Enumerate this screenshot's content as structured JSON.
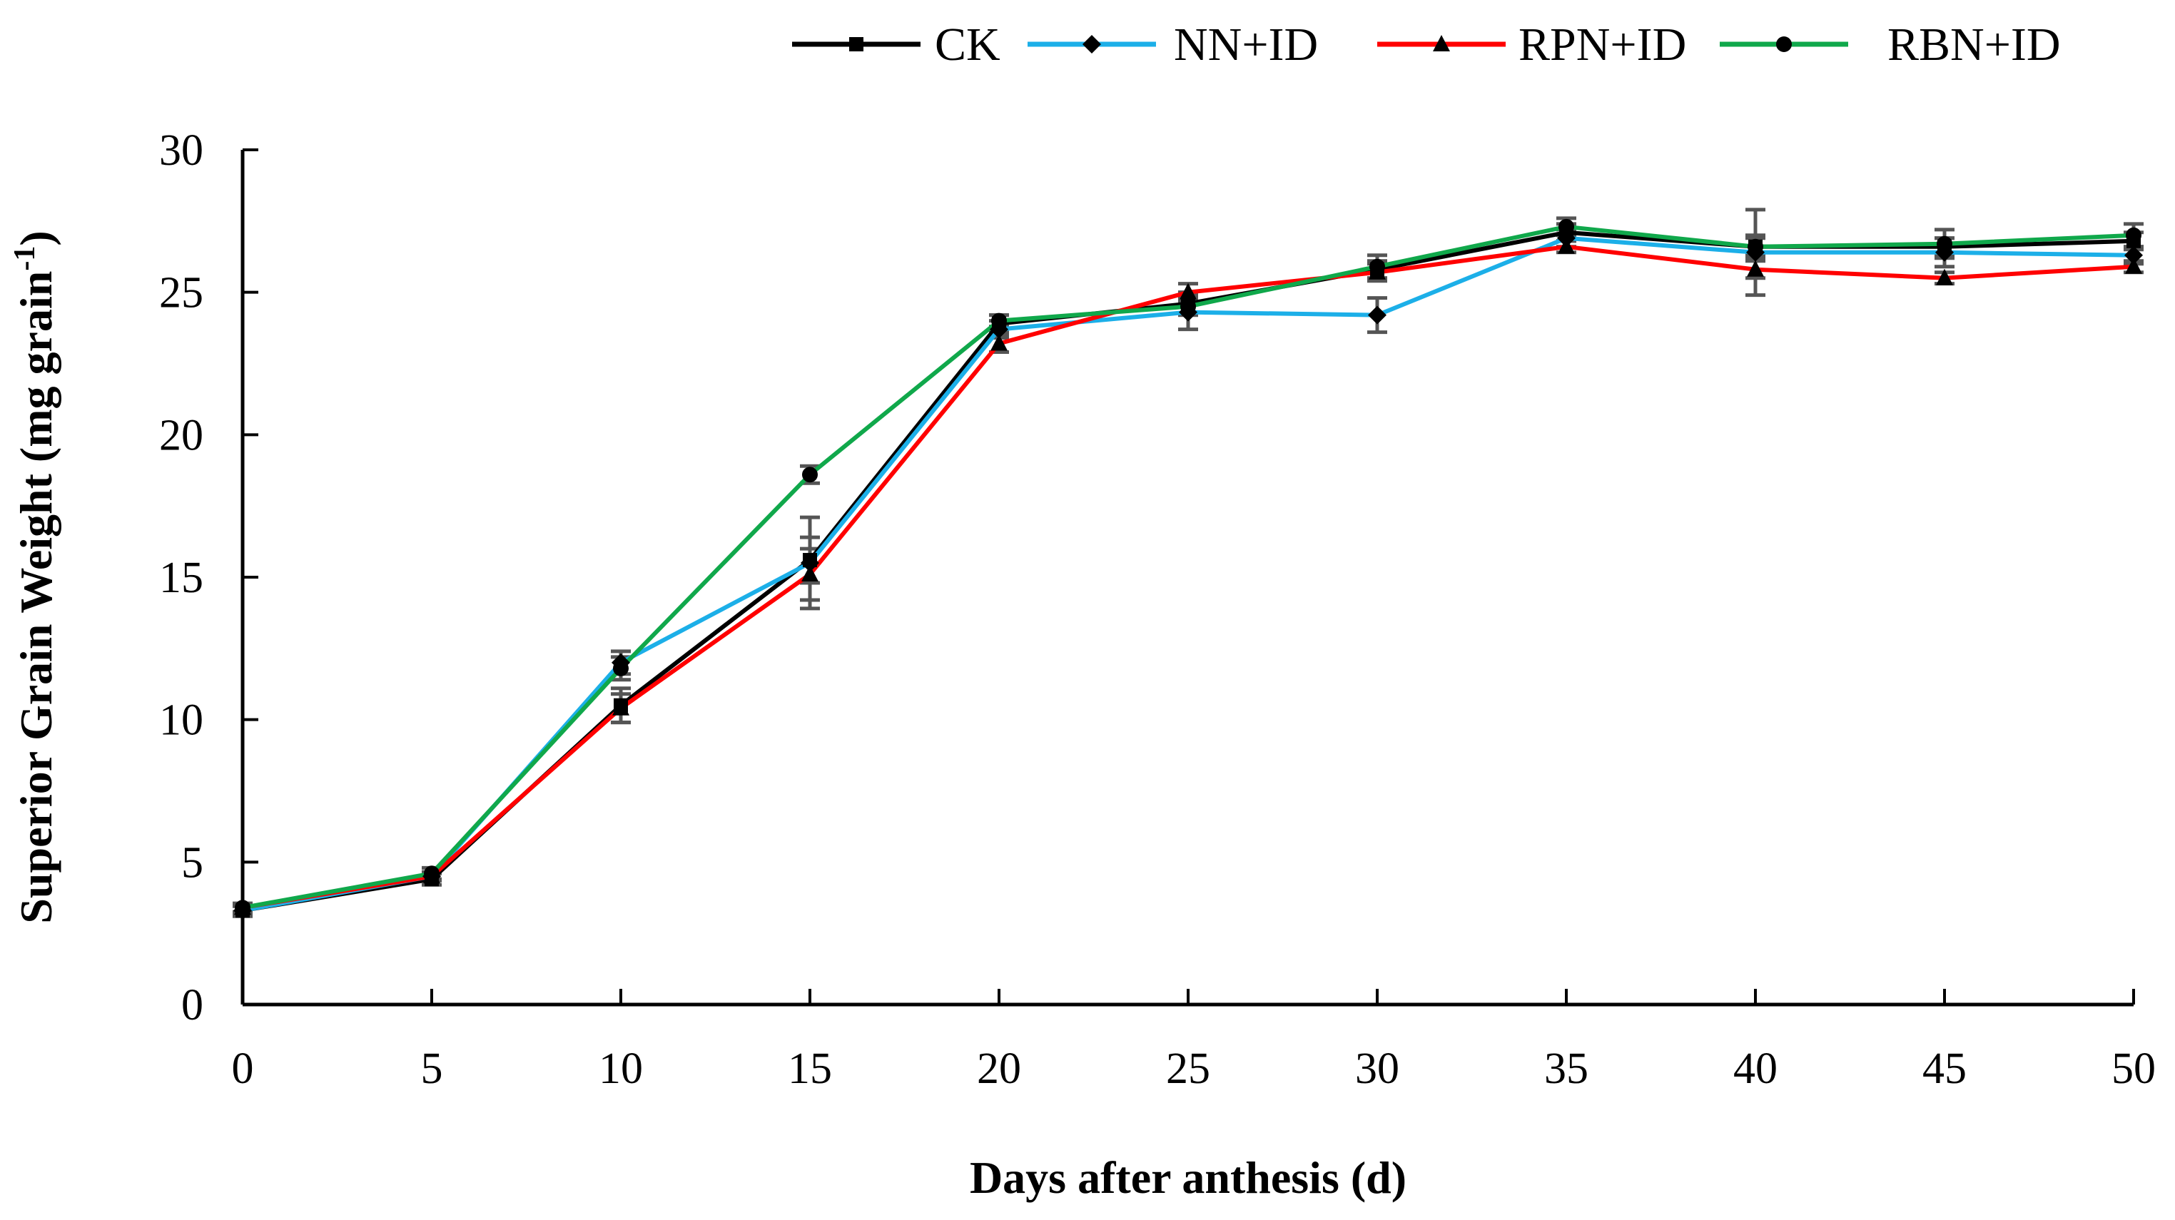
{
  "chart_data": {
    "type": "line",
    "title": "",
    "xlabel": "Days after anthesis (d)",
    "ylabel": "Superior Grain Weight (mg grain⁻¹)",
    "ylabel_main": "Superior Grain Weight (mg grain",
    "ylabel_sup": "-1",
    "ylabel_close": ")",
    "xlim": [
      0,
      50
    ],
    "ylim": [
      0,
      30
    ],
    "x": [
      0,
      5,
      10,
      15,
      20,
      25,
      30,
      35,
      40,
      45,
      50
    ],
    "yticks": [
      0,
      5,
      10,
      15,
      20,
      25,
      30
    ],
    "legend_position": "top-right",
    "grid": false,
    "series": [
      {
        "name": "CK",
        "color": "#000000",
        "marker": "square",
        "values": [
          3.3,
          4.4,
          10.5,
          15.6,
          23.9,
          24.6,
          25.8,
          27.1,
          26.6,
          26.6,
          26.8
        ],
        "errors": [
          0.2,
          0.2,
          0.6,
          0.8,
          0.3,
          0.4,
          0.3,
          0.3,
          0.4,
          0.3,
          0.3
        ]
      },
      {
        "name": "NN+ID",
        "color": "#1CAFE8",
        "marker": "diamond",
        "values": [
          3.3,
          4.5,
          12.0,
          15.5,
          23.7,
          24.3,
          24.2,
          26.9,
          26.4,
          26.4,
          26.3
        ],
        "errors": [
          0.15,
          0.15,
          0.4,
          1.6,
          0.3,
          0.6,
          0.6,
          0.3,
          1.5,
          0.5,
          0.3
        ]
      },
      {
        "name": "RPN+ID",
        "color": "#FF0000",
        "marker": "triangle",
        "values": [
          3.4,
          4.5,
          10.4,
          15.1,
          23.2,
          25.0,
          25.7,
          26.6,
          25.8,
          25.5,
          25.9
        ],
        "errors": [
          0.15,
          0.15,
          0.5,
          0.9,
          0.3,
          0.3,
          0.3,
          0.2,
          0.3,
          0.2,
          0.2
        ]
      },
      {
        "name": "RBN+ID",
        "color": "#10A84B",
        "marker": "circle",
        "values": [
          3.4,
          4.6,
          11.8,
          18.6,
          24.0,
          24.5,
          25.9,
          27.3,
          26.6,
          26.7,
          27.0
        ],
        "errors": [
          0.15,
          0.2,
          0.4,
          0.3,
          0.2,
          0.3,
          0.4,
          0.3,
          0.3,
          0.5,
          0.4
        ]
      }
    ]
  }
}
